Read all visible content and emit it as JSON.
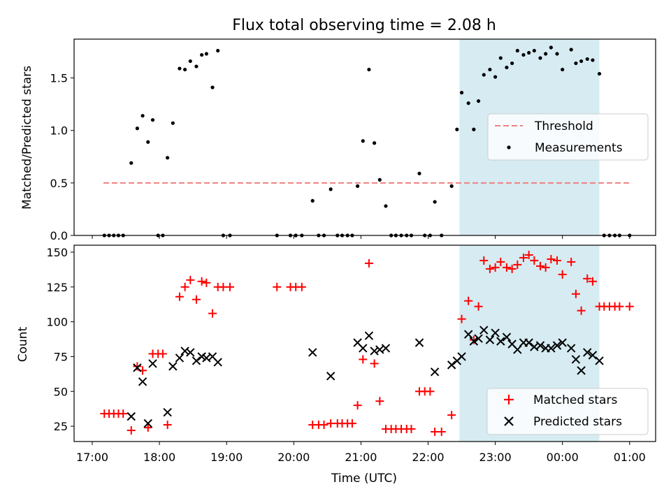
{
  "chart_data": {
    "title": "Flux total observing time = 2.08 h",
    "xlabel": "Time (UTC)",
    "x_units": "hours since 17:00 UTC",
    "x_ticks": [
      {
        "x": 0,
        "label": "17:00"
      },
      {
        "x": 1,
        "label": "18:00"
      },
      {
        "x": 2,
        "label": "19:00"
      },
      {
        "x": 3,
        "label": "20:00"
      },
      {
        "x": 4,
        "label": "21:00"
      },
      {
        "x": 5,
        "label": "22:00"
      },
      {
        "x": 6,
        "label": "23:00"
      },
      {
        "x": 7,
        "label": "00:00"
      },
      {
        "x": 8,
        "label": "01:00"
      }
    ],
    "shaded_interval": {
      "x_start": "22:28",
      "x_end": "00:33",
      "color": "#add8e6"
    },
    "panels": [
      {
        "type": "scatter",
        "ylabel": "Matched/Predicted stars",
        "ylim": [
          0,
          1.87
        ],
        "y_ticks": [
          "0.0",
          "0.5",
          "1.0",
          "1.5"
        ],
        "threshold": {
          "name": "Threshold",
          "value": 0.5,
          "x_range": [
            "17:10",
            "01:00"
          ],
          "color": "#f08080"
        },
        "series": [
          {
            "name": "Measurements",
            "color": "#000000",
            "points": [
              [
                0.18,
                0
              ],
              [
                0.25,
                0
              ],
              [
                0.32,
                0
              ],
              [
                0.39,
                0
              ],
              [
                0.46,
                0
              ],
              [
                0.58,
                0.69
              ],
              [
                0.67,
                1.02
              ],
              [
                0.75,
                1.14
              ],
              [
                0.83,
                0.89
              ],
              [
                0.9,
                1.1
              ],
              [
                0.98,
                0
              ],
              [
                1.05,
                0
              ],
              [
                1.12,
                0.74
              ],
              [
                1.2,
                1.07
              ],
              [
                1.3,
                1.59
              ],
              [
                1.38,
                1.58
              ],
              [
                1.46,
                1.66
              ],
              [
                1.55,
                1.61
              ],
              [
                1.63,
                1.72
              ],
              [
                1.7,
                1.73
              ],
              [
                1.79,
                1.41
              ],
              [
                1.87,
                1.76
              ],
              [
                1.95,
                0
              ],
              [
                2.05,
                0
              ],
              [
                2.75,
                0
              ],
              [
                2.95,
                0
              ],
              [
                3.03,
                0
              ],
              [
                3.12,
                0
              ],
              [
                3.28,
                0.33
              ],
              [
                3.37,
                0
              ],
              [
                3.45,
                0
              ],
              [
                3.55,
                0.44
              ],
              [
                3.65,
                0
              ],
              [
                3.72,
                0
              ],
              [
                3.8,
                0
              ],
              [
                3.87,
                0
              ],
              [
                3.95,
                0.47
              ],
              [
                4.03,
                0.9
              ],
              [
                4.12,
                1.58
              ],
              [
                4.2,
                0.88
              ],
              [
                4.28,
                0.53
              ],
              [
                4.37,
                0.28
              ],
              [
                4.45,
                0
              ],
              [
                4.52,
                0
              ],
              [
                4.6,
                0
              ],
              [
                4.68,
                0
              ],
              [
                4.75,
                0
              ],
              [
                4.87,
                0.59
              ],
              [
                4.95,
                0
              ],
              [
                5.03,
                0
              ],
              [
                5.1,
                0.32
              ],
              [
                5.2,
                0
              ],
              [
                5.35,
                0.47
              ],
              [
                5.43,
                1.01
              ],
              [
                5.5,
                1.36
              ],
              [
                5.6,
                1.26
              ],
              [
                5.68,
                1.01
              ],
              [
                5.75,
                1.28
              ],
              [
                5.83,
                1.53
              ],
              [
                5.92,
                1.58
              ],
              [
                6.0,
                1.51
              ],
              [
                6.08,
                1.69
              ],
              [
                6.17,
                1.6
              ],
              [
                6.25,
                1.64
              ],
              [
                6.33,
                1.76
              ],
              [
                6.42,
                1.72
              ],
              [
                6.5,
                1.74
              ],
              [
                6.58,
                1.76
              ],
              [
                6.67,
                1.69
              ],
              [
                6.75,
                1.73
              ],
              [
                6.83,
                1.79
              ],
              [
                6.92,
                1.73
              ],
              [
                7.0,
                1.58
              ],
              [
                7.13,
                1.77
              ],
              [
                7.2,
                1.64
              ],
              [
                7.28,
                1.66
              ],
              [
                7.37,
                1.68
              ],
              [
                7.45,
                1.67
              ],
              [
                7.55,
                1.54
              ],
              [
                7.62,
                0
              ],
              [
                7.7,
                0
              ],
              [
                7.78,
                0
              ],
              [
                7.85,
                0
              ],
              [
                8.0,
                0
              ]
            ]
          }
        ],
        "legend": {
          "placement": "center-right",
          "entries": [
            "Threshold",
            "Measurements"
          ]
        }
      },
      {
        "type": "scatter",
        "ylabel": "Count",
        "ylim": [
          14,
          155
        ],
        "y_ticks": [
          "25",
          "50",
          "75",
          "100",
          "125",
          "150"
        ],
        "series": [
          {
            "name": "Matched stars",
            "color": "#ff0000",
            "marker": "+",
            "points": [
              [
                0.18,
                34
              ],
              [
                0.25,
                34
              ],
              [
                0.32,
                34
              ],
              [
                0.39,
                34
              ],
              [
                0.46,
                34
              ],
              [
                0.58,
                22
              ],
              [
                0.67,
                68
              ],
              [
                0.75,
                65
              ],
              [
                0.83,
                24
              ],
              [
                0.9,
                77
              ],
              [
                0.98,
                77
              ],
              [
                1.05,
                77
              ],
              [
                1.12,
                26
              ],
              [
                1.3,
                118
              ],
              [
                1.38,
                125
              ],
              [
                1.46,
                130
              ],
              [
                1.55,
                116
              ],
              [
                1.63,
                129
              ],
              [
                1.7,
                128
              ],
              [
                1.79,
                106
              ],
              [
                1.87,
                125
              ],
              [
                1.95,
                125
              ],
              [
                2.05,
                125
              ],
              [
                2.75,
                125
              ],
              [
                2.95,
                125
              ],
              [
                3.03,
                125
              ],
              [
                3.12,
                125
              ],
              [
                3.28,
                26
              ],
              [
                3.37,
                26
              ],
              [
                3.45,
                26
              ],
              [
                3.55,
                27
              ],
              [
                3.65,
                27
              ],
              [
                3.72,
                27
              ],
              [
                3.8,
                27
              ],
              [
                3.87,
                27
              ],
              [
                3.95,
                40
              ],
              [
                4.03,
                73
              ],
              [
                4.12,
                142
              ],
              [
                4.2,
                70
              ],
              [
                4.28,
                43
              ],
              [
                4.37,
                23
              ],
              [
                4.45,
                23
              ],
              [
                4.52,
                23
              ],
              [
                4.6,
                23
              ],
              [
                4.68,
                23
              ],
              [
                4.75,
                23
              ],
              [
                4.87,
                50
              ],
              [
                4.95,
                50
              ],
              [
                5.03,
                50
              ],
              [
                5.1,
                21
              ],
              [
                5.2,
                21
              ],
              [
                5.35,
                33
              ],
              [
                5.5,
                102
              ],
              [
                5.6,
                115
              ],
              [
                5.68,
                87
              ],
              [
                5.75,
                111
              ],
              [
                5.83,
                144
              ],
              [
                5.92,
                138
              ],
              [
                6.0,
                139
              ],
              [
                6.08,
                143
              ],
              [
                6.17,
                139
              ],
              [
                6.25,
                138
              ],
              [
                6.33,
                141
              ],
              [
                6.42,
                146
              ],
              [
                6.5,
                148
              ],
              [
                6.58,
                144
              ],
              [
                6.67,
                140
              ],
              [
                6.75,
                139
              ],
              [
                6.83,
                145
              ],
              [
                6.92,
                144
              ],
              [
                7.0,
                134
              ],
              [
                7.13,
                143
              ],
              [
                7.2,
                120
              ],
              [
                7.28,
                108
              ],
              [
                7.37,
                131
              ],
              [
                7.45,
                129
              ],
              [
                7.55,
                111
              ],
              [
                7.62,
                111
              ],
              [
                7.7,
                111
              ],
              [
                7.78,
                111
              ],
              [
                7.85,
                111
              ],
              [
                8.0,
                111
              ]
            ]
          },
          {
            "name": "Predicted stars",
            "color": "#000000",
            "marker": "x",
            "points": [
              [
                0.58,
                32
              ],
              [
                0.67,
                67
              ],
              [
                0.75,
                57
              ],
              [
                0.83,
                27
              ],
              [
                0.9,
                70
              ],
              [
                1.12,
                35
              ],
              [
                1.2,
                68
              ],
              [
                1.3,
                74
              ],
              [
                1.38,
                79
              ],
              [
                1.46,
                78
              ],
              [
                1.55,
                72
              ],
              [
                1.63,
                75
              ],
              [
                1.7,
                74
              ],
              [
                1.79,
                75
              ],
              [
                1.87,
                71
              ],
              [
                3.28,
                78
              ],
              [
                3.55,
                61
              ],
              [
                3.95,
                85
              ],
              [
                4.03,
                81
              ],
              [
                4.12,
                90
              ],
              [
                4.2,
                79
              ],
              [
                4.28,
                80
              ],
              [
                4.37,
                81
              ],
              [
                4.87,
                85
              ],
              [
                5.1,
                64
              ],
              [
                5.35,
                69
              ],
              [
                5.43,
                72
              ],
              [
                5.5,
                75
              ],
              [
                5.6,
                91
              ],
              [
                5.68,
                86
              ],
              [
                5.75,
                88
              ],
              [
                5.83,
                94
              ],
              [
                5.92,
                87
              ],
              [
                6.0,
                92
              ],
              [
                6.08,
                86
              ],
              [
                6.17,
                89
              ],
              [
                6.25,
                84
              ],
              [
                6.33,
                80
              ],
              [
                6.42,
                85
              ],
              [
                6.5,
                85
              ],
              [
                6.58,
                82
              ],
              [
                6.67,
                83
              ],
              [
                6.75,
                81
              ],
              [
                6.83,
                81
              ],
              [
                6.92,
                83
              ],
              [
                7.0,
                85
              ],
              [
                7.13,
                81
              ],
              [
                7.2,
                73
              ],
              [
                7.28,
                65
              ],
              [
                7.37,
                78
              ],
              [
                7.45,
                76
              ],
              [
                7.55,
                72
              ]
            ]
          }
        ],
        "legend": {
          "placement": "lower-right",
          "entries": [
            "Matched stars",
            "Predicted stars"
          ]
        }
      }
    ]
  }
}
